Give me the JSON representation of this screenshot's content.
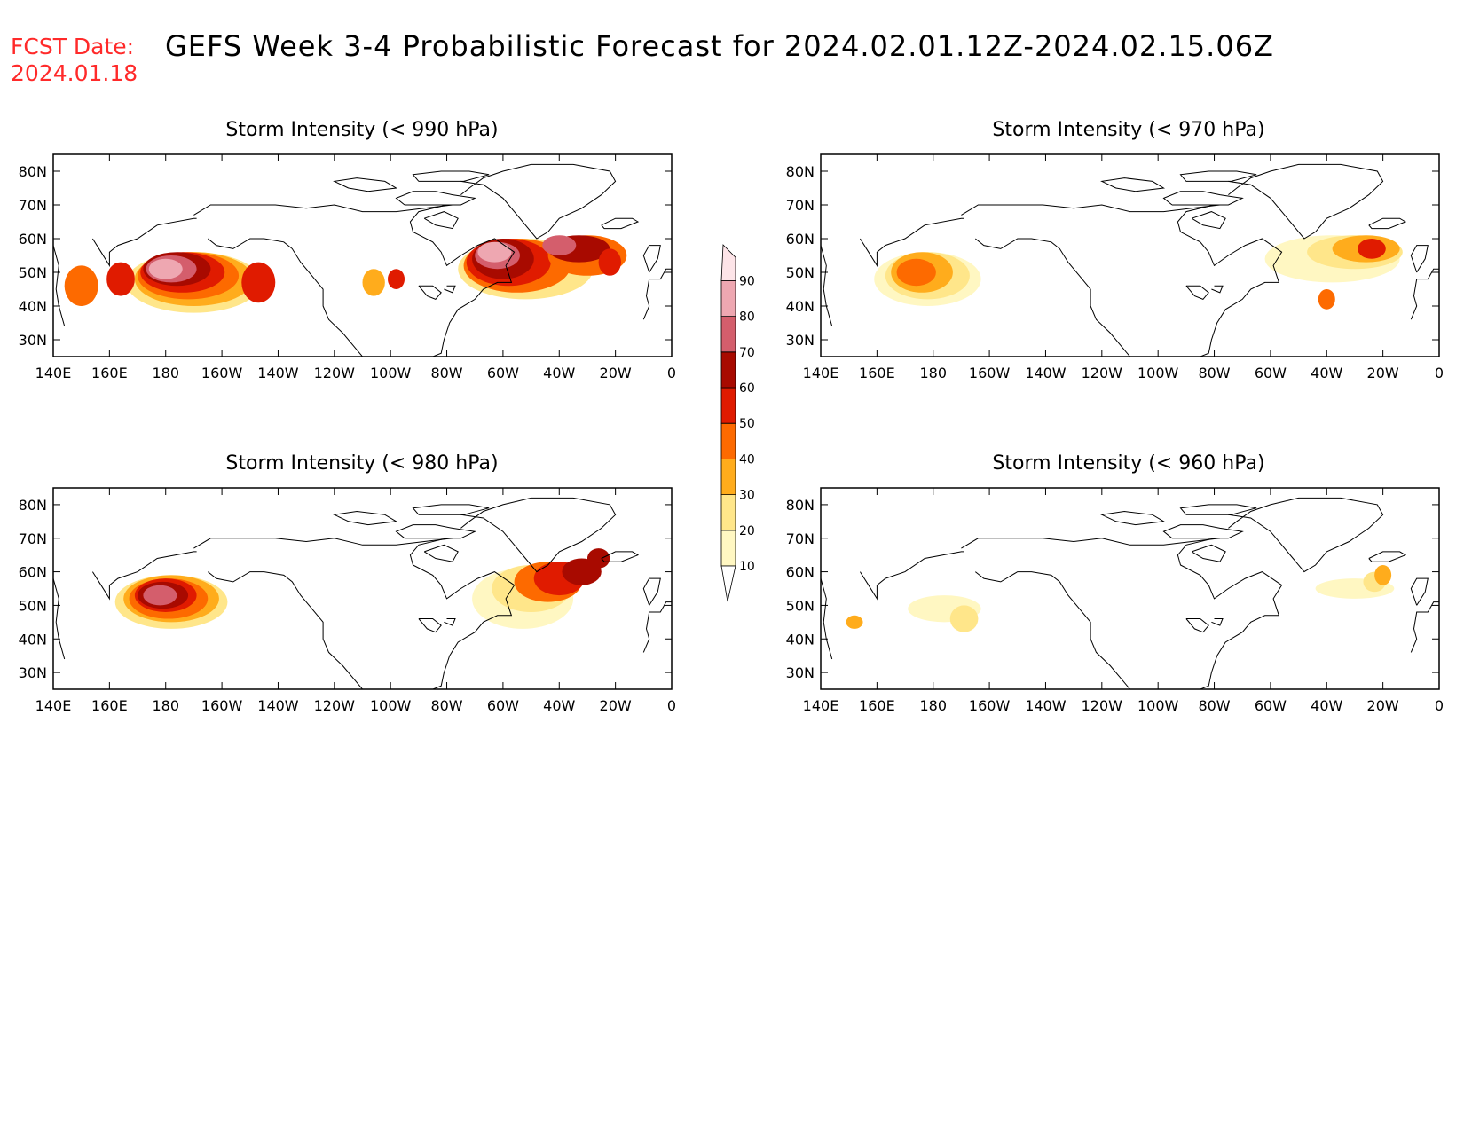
{
  "header": {
    "fcst_label": "FCST Date:",
    "fcst_date": "2024.01.18",
    "title": "GEFS Week 3-4 Probabilistic Forecast for 2024.02.01.12Z-2024.02.15.06Z"
  },
  "axes": {
    "lon_ticks": [
      "140E",
      "160E",
      "180",
      "160W",
      "140W",
      "120W",
      "100W",
      "80W",
      "60W",
      "40W",
      "20W",
      "0"
    ],
    "lat_ticks": [
      "80N",
      "70N",
      "60N",
      "50N",
      "40N",
      "30N"
    ]
  },
  "colorbar": {
    "levels": [
      "10",
      "20",
      "30",
      "40",
      "50",
      "60",
      "70",
      "80",
      "90"
    ],
    "colors": [
      "#fff7c2",
      "#ffe68a",
      "#ffac1c",
      "#fd6a00",
      "#e01b00",
      "#a80a00",
      "#d45e6c",
      "#eea7b1",
      "#fde4e8"
    ]
  },
  "panels": [
    {
      "id": "p990",
      "title": "Storm Intensity (< 990 hPa)"
    },
    {
      "id": "p970",
      "title": "Storm Intensity (< 970 hPa)"
    },
    {
      "id": "p980",
      "title": "Storm Intensity (< 980 hPa)"
    },
    {
      "id": "p960",
      "title": "Storm Intensity (< 960 hPa)"
    }
  ]
}
